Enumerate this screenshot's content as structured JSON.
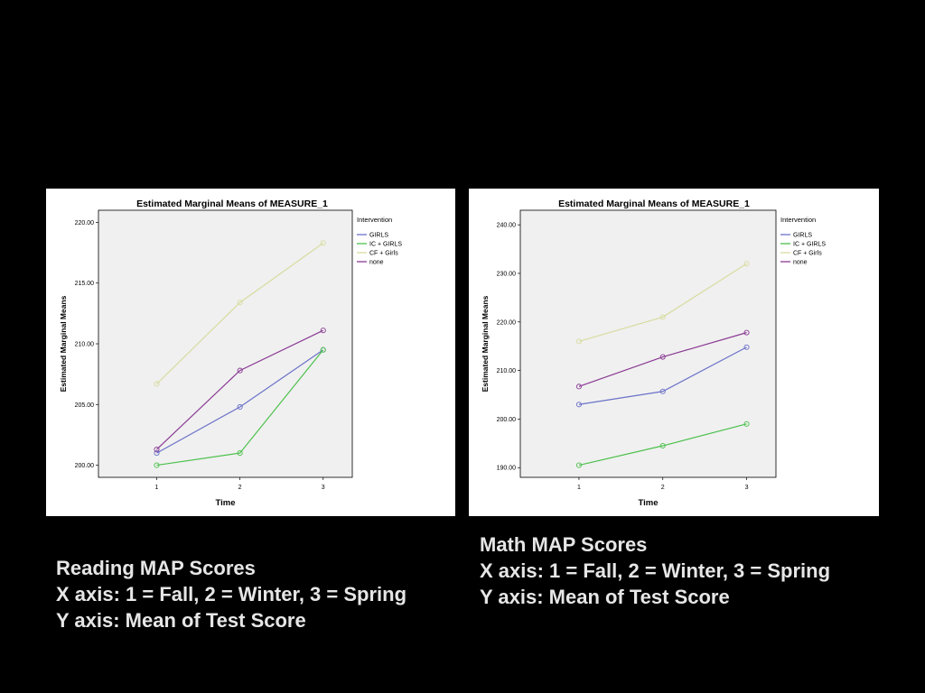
{
  "colors": {
    "background": "#000000",
    "panel": "#ffffff",
    "plot_area": "#f0f0f0",
    "caption_text": "#e6e6e6"
  },
  "captions": {
    "reading": {
      "line1": "Reading MAP Scores",
      "line2": "X axis: 1 = Fall, 2 = Winter, 3 = Spring",
      "line3": "Y axis: Mean of Test Score"
    },
    "math": {
      "line1": "Math MAP Scores",
      "line2": "X axis: 1 = Fall, 2 = Winter, 3 = Spring",
      "line3": "Y axis: Mean of Test Score"
    }
  },
  "chart_data": [
    {
      "id": "reading",
      "type": "line",
      "title": "Estimated Marginal Means of MEASURE_1",
      "xlabel": "Time",
      "ylabel": "Estimated Marginal Means",
      "x": [
        1,
        2,
        3
      ],
      "xticks": [
        "1",
        "2",
        "3"
      ],
      "ylim": [
        199,
        221
      ],
      "yticks": [
        200,
        205,
        210,
        215,
        220
      ],
      "ytick_labels": [
        "200.00",
        "205.00",
        "210.00",
        "215.00",
        "220.00"
      ],
      "legend_title": "Intervention",
      "legend_position": "right",
      "grid": false,
      "series": [
        {
          "name": "GIRLS",
          "color": "#6b72c8",
          "values": [
            201.0,
            204.8,
            209.5
          ]
        },
        {
          "name": "IC + GIRLS",
          "color": "#4cc04c",
          "values": [
            200.0,
            201.0,
            209.5
          ]
        },
        {
          "name": "CF + Girls",
          "color": "#d8dca0",
          "values": [
            206.7,
            213.4,
            218.3
          ]
        },
        {
          "name": "none",
          "color": "#8a3a94",
          "values": [
            201.3,
            207.8,
            211.1
          ]
        }
      ]
    },
    {
      "id": "math",
      "type": "line",
      "title": "Estimated Marginal Means of MEASURE_1",
      "xlabel": "Time",
      "ylabel": "Estimated Marginal Means",
      "x": [
        1,
        2,
        3
      ],
      "xticks": [
        "1",
        "2",
        "3"
      ],
      "ylim": [
        188,
        243
      ],
      "yticks": [
        190,
        200,
        210,
        220,
        230,
        240
      ],
      "ytick_labels": [
        "190.00",
        "200.00",
        "210.00",
        "220.00",
        "230.00",
        "240.00"
      ],
      "legend_title": "Intervention",
      "legend_position": "right",
      "grid": false,
      "series": [
        {
          "name": "GIRLS",
          "color": "#6b72c8",
          "values": [
            203.0,
            205.7,
            214.8
          ]
        },
        {
          "name": "IC + GIRLS",
          "color": "#4cc04c",
          "values": [
            190.5,
            194.5,
            199.0
          ]
        },
        {
          "name": "CF + Girls",
          "color": "#d8dca0",
          "values": [
            216.0,
            221.0,
            232.0
          ]
        },
        {
          "name": "none",
          "color": "#8a3a94",
          "values": [
            206.7,
            212.8,
            217.8
          ]
        }
      ]
    }
  ]
}
